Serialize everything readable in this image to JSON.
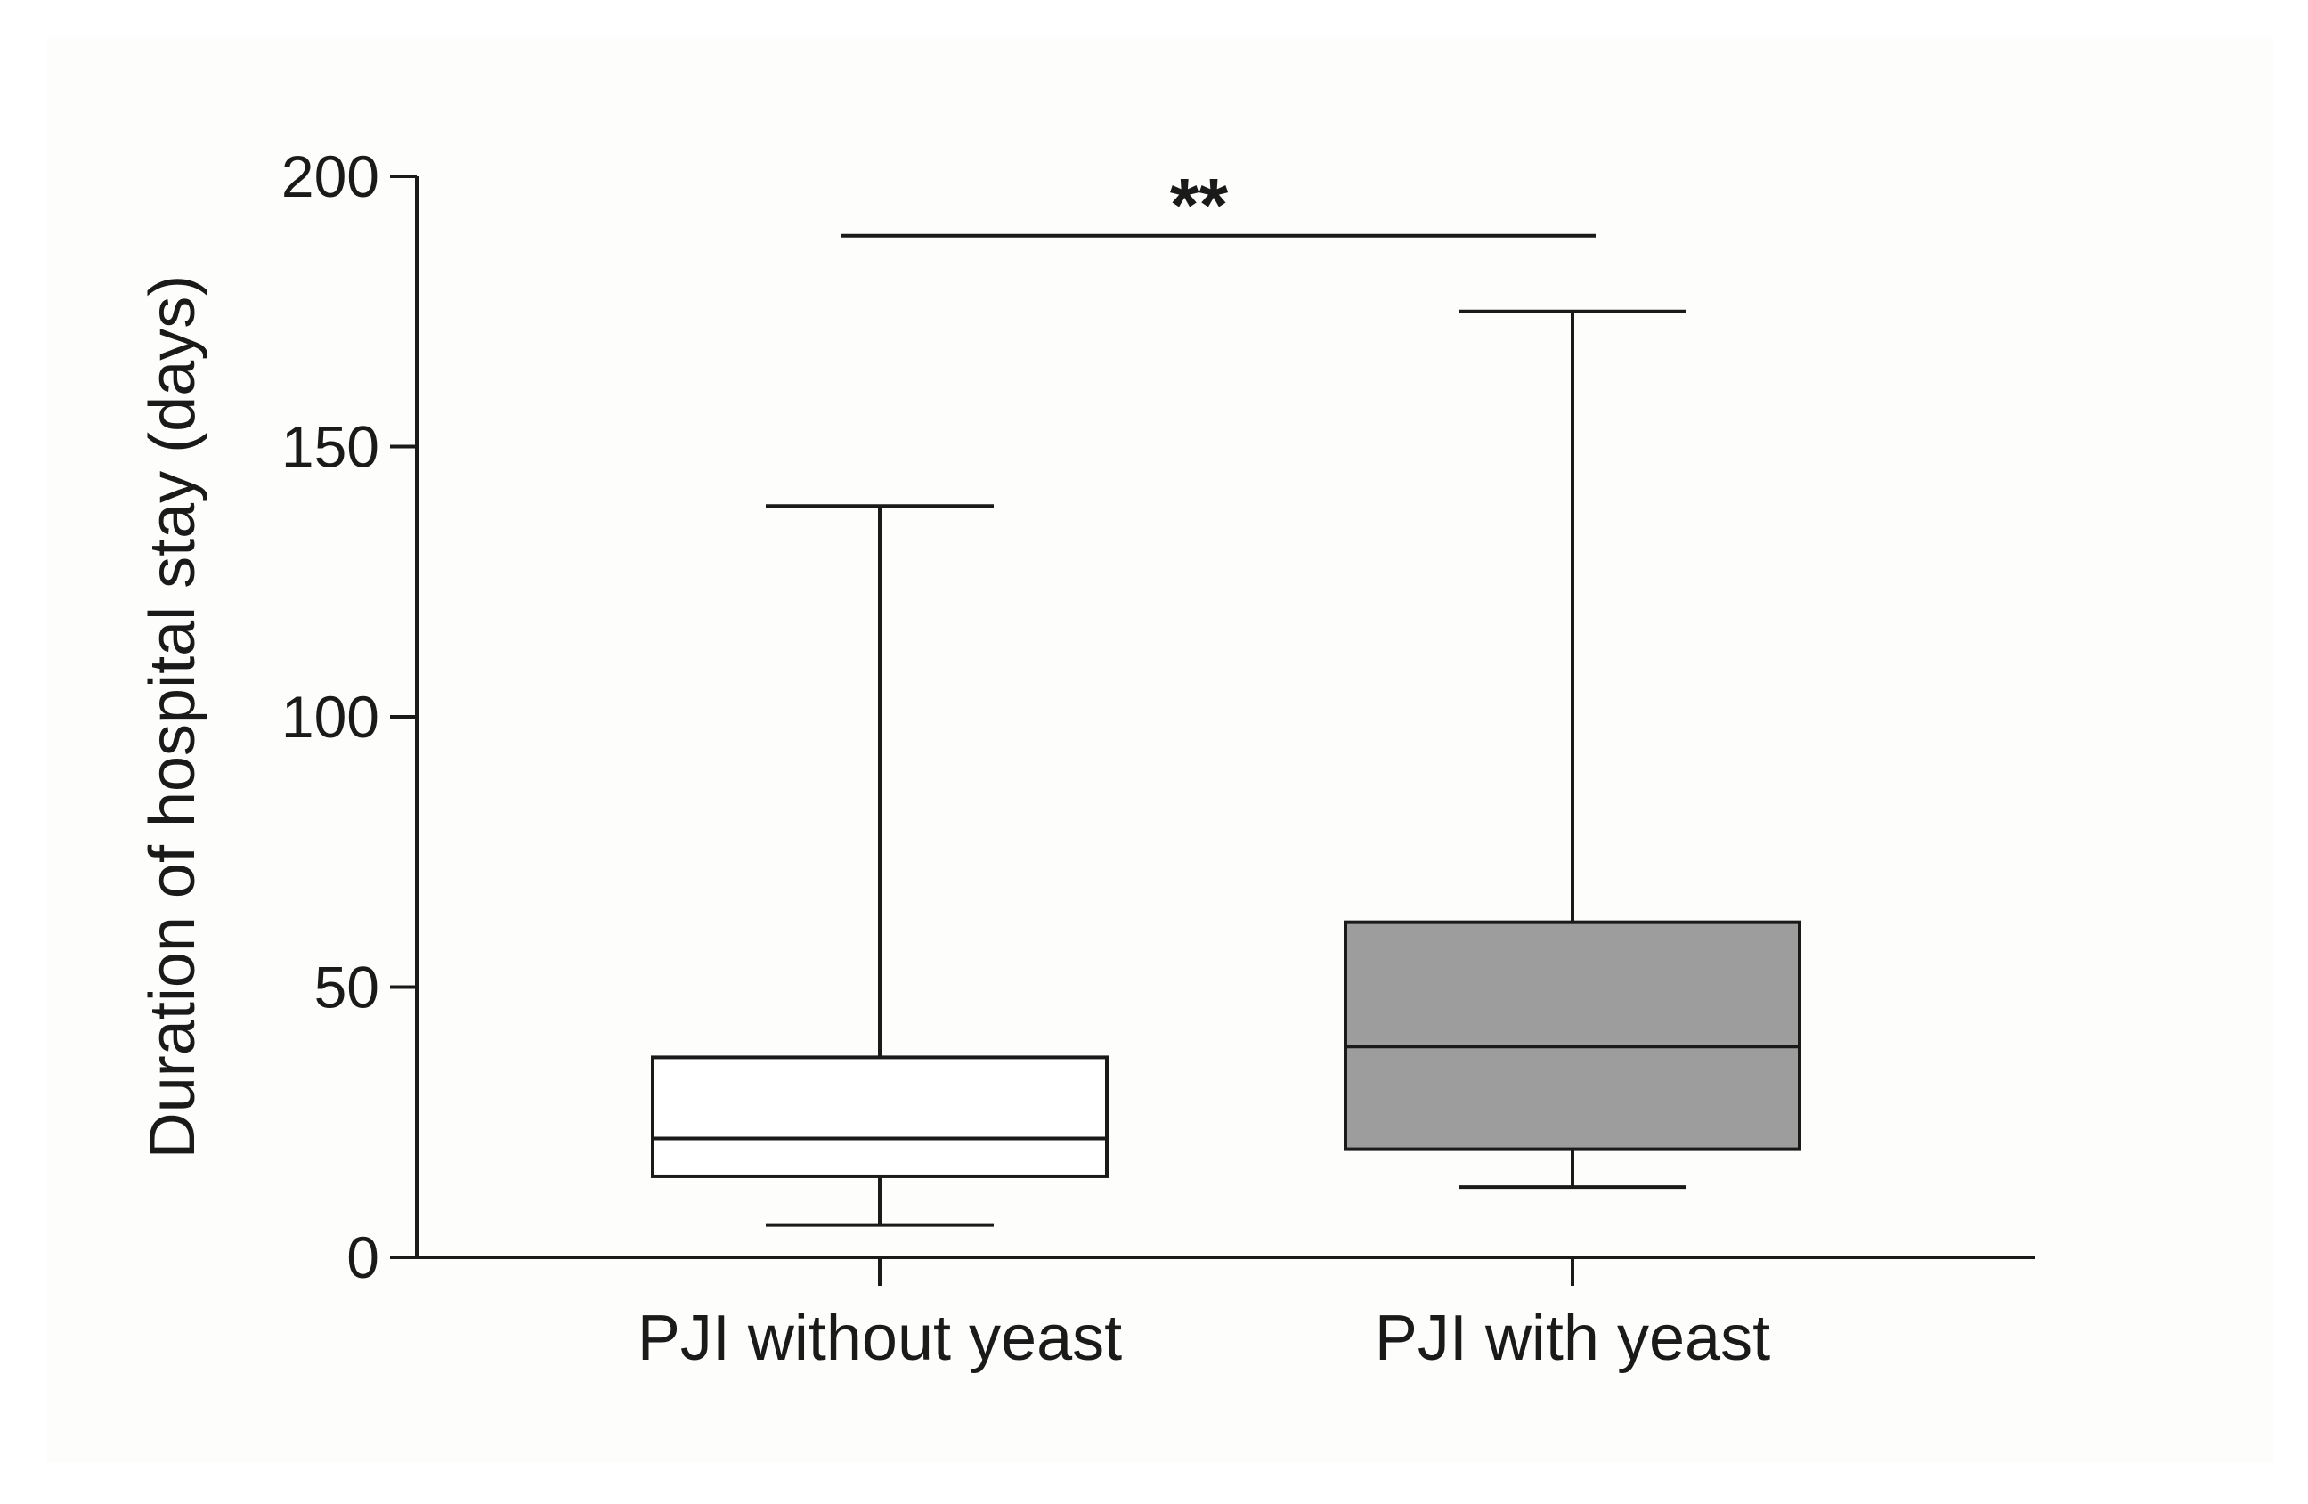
{
  "chart_data": {
    "type": "box",
    "title": "",
    "xlabel": "",
    "ylabel": "Duration of hospital stay (days)",
    "ylim": [
      0,
      200
    ],
    "yticks": [
      0,
      50,
      100,
      150,
      200
    ],
    "categories": [
      "PJI without yeast",
      "PJI with yeast"
    ],
    "boxes": [
      {
        "category": "PJI without yeast",
        "min": 6,
        "q1": 15,
        "median": 22,
        "q3": 37,
        "max": 139,
        "fill": "#ffffff"
      },
      {
        "category": "PJI with yeast",
        "min": 13,
        "q1": 20,
        "median": 39,
        "q3": 62,
        "max": 175,
        "fill": "#9c9d9c"
      }
    ],
    "annotations": [
      {
        "text": "**",
        "y": 189,
        "between": [
          "PJI without yeast",
          "PJI with yeast"
        ]
      }
    ],
    "grid": false,
    "legend": "none"
  }
}
